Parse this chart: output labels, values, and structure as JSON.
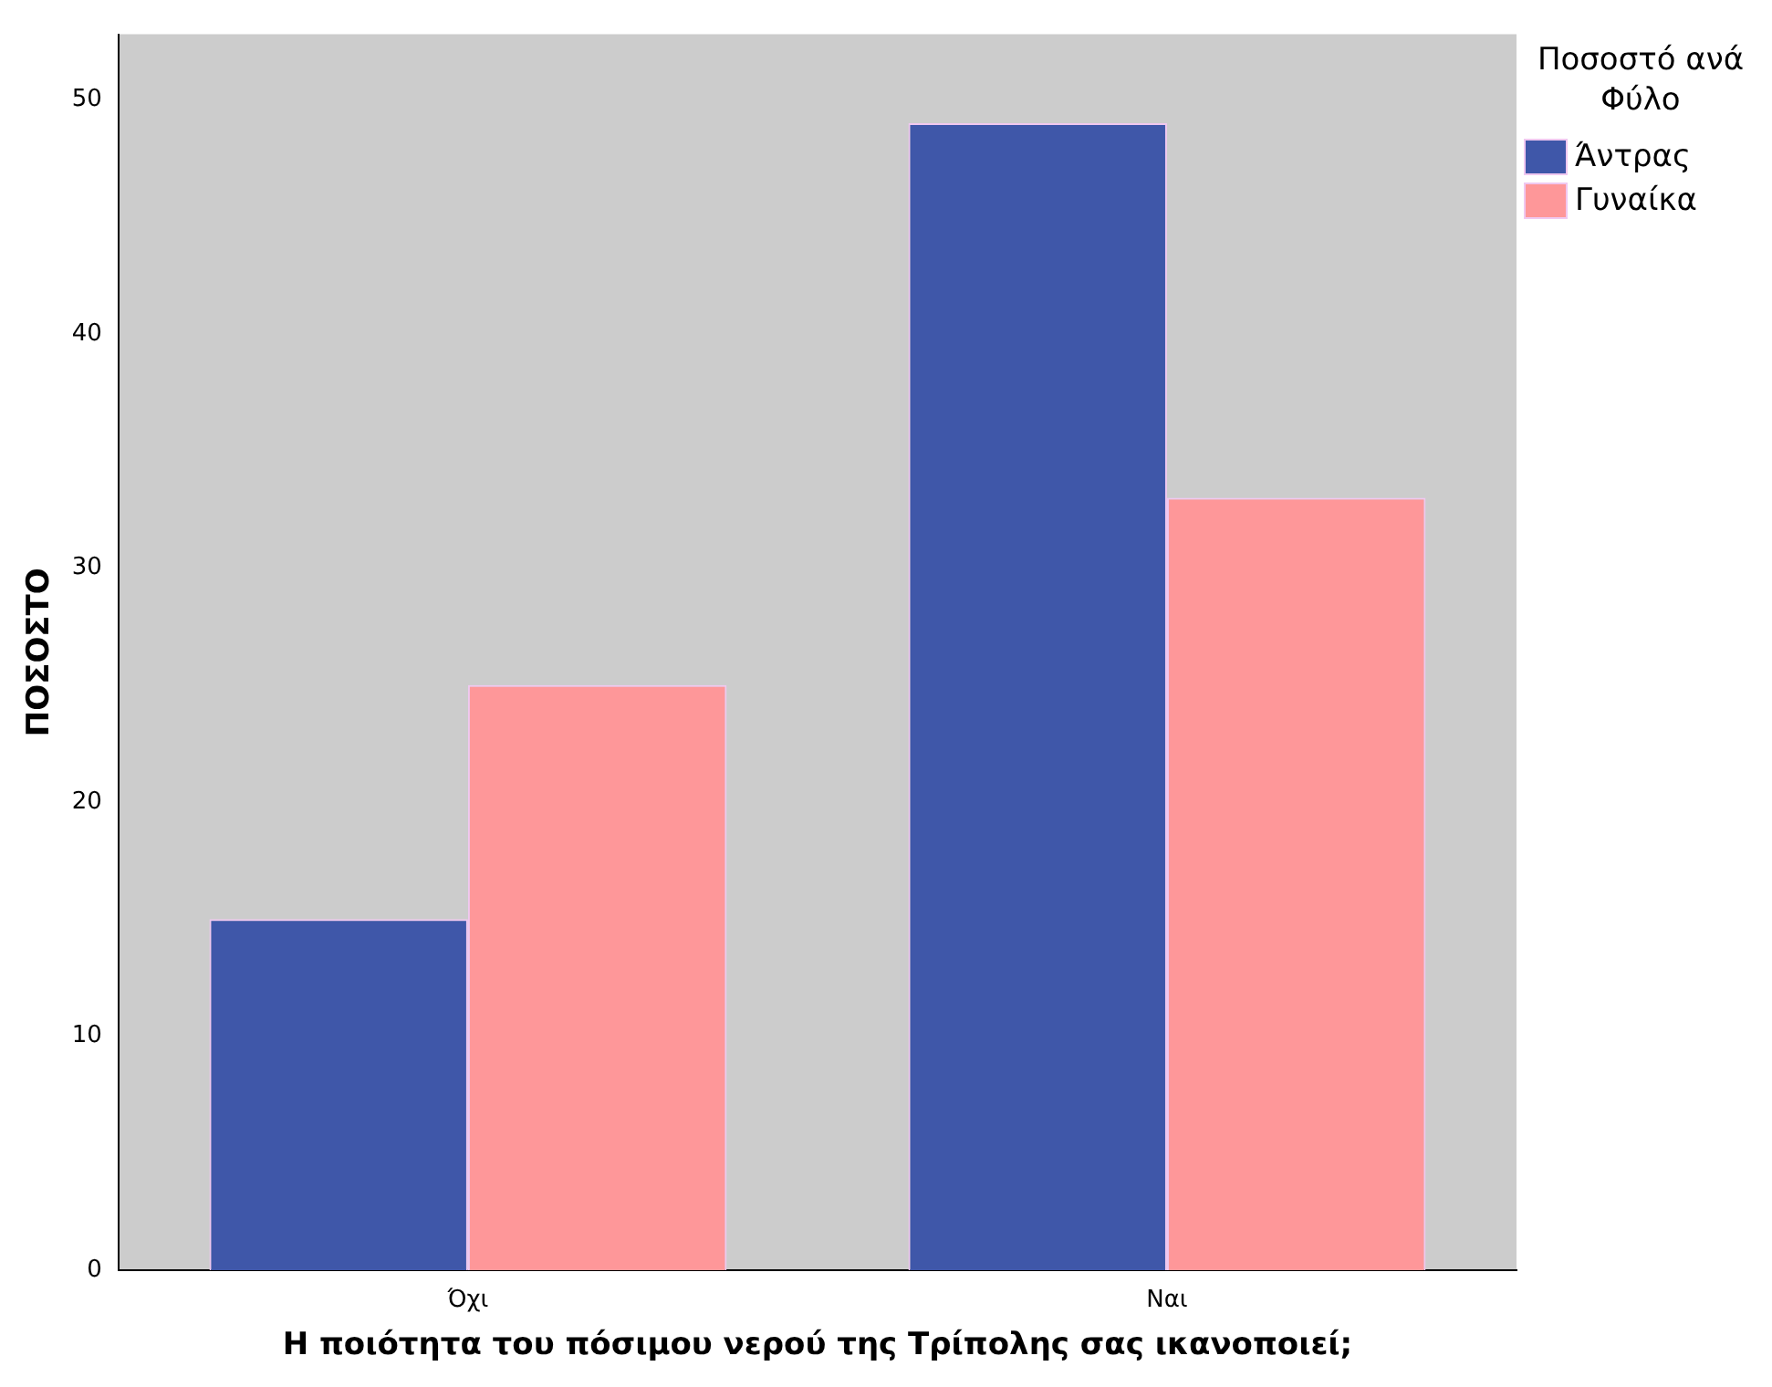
{
  "chart_data": {
    "type": "bar",
    "xlabel": "Η ποιότητα του πόσιμου νερού της Τρίπολης σας ικανοποιεί;",
    "ylabel": "ΠΟΣΟΣΤΟ",
    "legend_title": "Ποσοστό ανά Φύλο",
    "categories": [
      "Όχι",
      "Ναι"
    ],
    "series": [
      {
        "name": "Άντρας",
        "color": "#3f57a9",
        "values": [
          15,
          49
        ]
      },
      {
        "name": "Γυναίκα",
        "color": "#fe9799",
        "values": [
          25,
          33
        ]
      }
    ],
    "ylim": [
      0,
      52.8
    ],
    "yticks": [
      0,
      10,
      20,
      30,
      40,
      50
    ],
    "grid": false,
    "legend": "top right"
  }
}
